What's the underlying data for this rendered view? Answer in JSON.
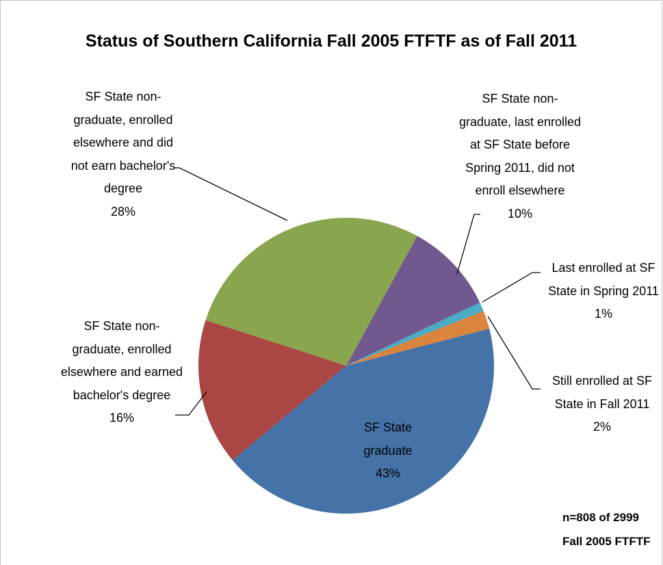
{
  "chart_data": {
    "type": "pie",
    "title": "Status of Southern California Fall 2005 FTFTF as of Fall 2011",
    "categories": [
      "SF State graduate",
      "Still enrolled at SF State in Fall 2011",
      "Last enrolled at SF State in Spring 2011",
      "SF State non-graduate, last enrolled at SF State before Spring 2011, did not enroll elsewhere",
      "SF State non-graduate, enrolled elsewhere and did not earn bachelor's degree",
      "SF State non-graduate, enrolled elsewhere and earned bachelor's degree"
    ],
    "values": [
      43,
      2,
      1,
      10,
      28,
      16
    ],
    "value_labels": [
      "43%",
      "2%",
      "1%",
      "10%",
      "28%",
      "16%"
    ],
    "colors": [
      "#4572a7",
      "#db843d",
      "#4bacc6",
      "#71588f",
      "#89a54e",
      "#aa4643"
    ],
    "annotations": [
      "n=808 of 2999",
      "Fall 2005 FTFTF"
    ]
  }
}
